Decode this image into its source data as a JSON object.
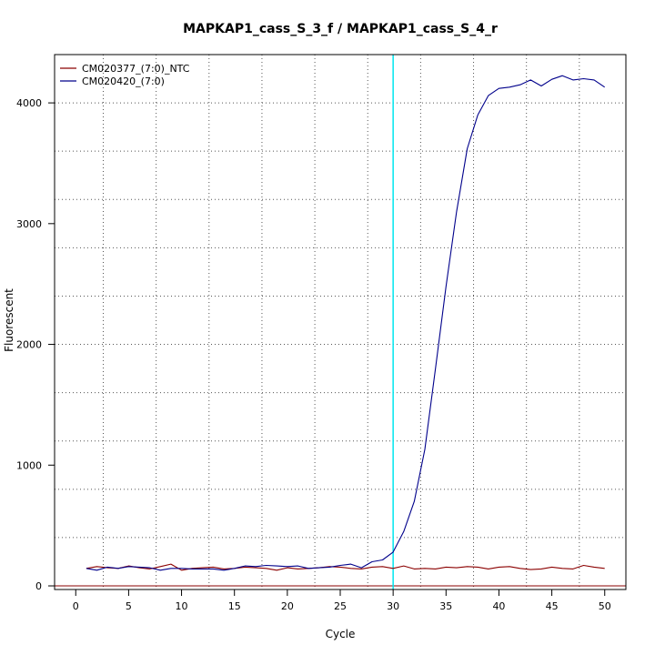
{
  "chart_data": {
    "type": "line",
    "title": "MAPKAP1_cass_S_3_f / MAPKAP1_cass_S_4_r",
    "xlabel": "Cycle",
    "ylabel": "Fluorescent",
    "xlim": [
      -2,
      52
    ],
    "ylim": [
      -30,
      4400
    ],
    "xticks": [
      0,
      5,
      10,
      15,
      20,
      25,
      30,
      35,
      40,
      45,
      50
    ],
    "yticks": [
      0,
      1000,
      2000,
      3000,
      4000
    ],
    "grid": true,
    "x_grid": [
      2.6,
      7.6,
      12.6,
      17.6,
      22.6,
      27.6,
      32.6,
      37.6,
      42.6,
      47.6
    ],
    "y_grid": [
      400,
      800,
      1200,
      1600,
      2000,
      2400,
      2800,
      3200,
      3600,
      4000
    ],
    "legend_position": "top-left",
    "threshold": {
      "x": 30,
      "color": "#00e5ee"
    },
    "baseline": {
      "y": 0,
      "color": "#8b0000"
    },
    "x": [
      1,
      2,
      3,
      4,
      5,
      6,
      7,
      8,
      9,
      10,
      11,
      12,
      13,
      14,
      15,
      16,
      17,
      18,
      19,
      20,
      21,
      22,
      23,
      24,
      25,
      26,
      27,
      28,
      29,
      30,
      31,
      32,
      33,
      34,
      35,
      36,
      37,
      38,
      39,
      40,
      41,
      42,
      43,
      44,
      45,
      46,
      47,
      48,
      49,
      50
    ],
    "series": [
      {
        "name": "CM020377_(7:0)_NTC",
        "color": "#8b0000",
        "values": [
          145,
          160,
          150,
          145,
          165,
          150,
          140,
          160,
          180,
          130,
          145,
          150,
          155,
          140,
          145,
          155,
          150,
          145,
          130,
          150,
          140,
          145,
          150,
          160,
          155,
          145,
          140,
          155,
          160,
          145,
          165,
          140,
          145,
          140,
          155,
          150,
          160,
          155,
          140,
          155,
          160,
          145,
          135,
          140,
          155,
          145,
          140,
          170,
          155,
          145
        ]
      },
      {
        "name": "CM020420_(7:0)",
        "color": "#00008b",
        "values": [
          145,
          130,
          155,
          145,
          160,
          155,
          150,
          130,
          145,
          145,
          140,
          140,
          140,
          130,
          145,
          165,
          160,
          170,
          165,
          160,
          165,
          145,
          150,
          155,
          170,
          180,
          150,
          200,
          215,
          280,
          450,
          700,
          1130,
          1800,
          2480,
          3100,
          3620,
          3900,
          4060,
          4120,
          4130,
          4150,
          4190,
          4140,
          4195,
          4225,
          4190,
          4200,
          4190,
          4130
        ]
      }
    ]
  }
}
